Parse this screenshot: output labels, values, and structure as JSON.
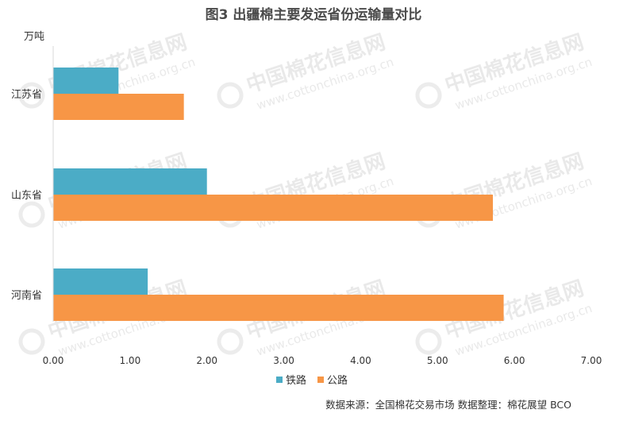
{
  "chart_data": {
    "type": "bar",
    "orientation": "horizontal",
    "title": "图3  出疆棉主要发运省份运输量对比",
    "ylabel": "万吨",
    "xlim": [
      0,
      7
    ],
    "xticks": [
      "0.00",
      "1.00",
      "2.00",
      "3.00",
      "4.00",
      "5.00",
      "6.00",
      "7.00"
    ],
    "categories": [
      "江苏省",
      "山东省",
      "河南省"
    ],
    "series": [
      {
        "name": "铁路",
        "color": "#4BACC6",
        "values": [
          0.85,
          2.0,
          1.23
        ]
      },
      {
        "name": "公路",
        "color": "#F79646",
        "values": [
          1.7,
          5.72,
          5.86
        ]
      }
    ],
    "legend_position": "bottom",
    "grid": false
  },
  "source_note": "数据来源：全国棉花交易市场    数据整理：棉花展望 BCO",
  "watermark": {
    "cn": "中国棉花信息网",
    "url": "www.cottonchina.org.cn"
  }
}
